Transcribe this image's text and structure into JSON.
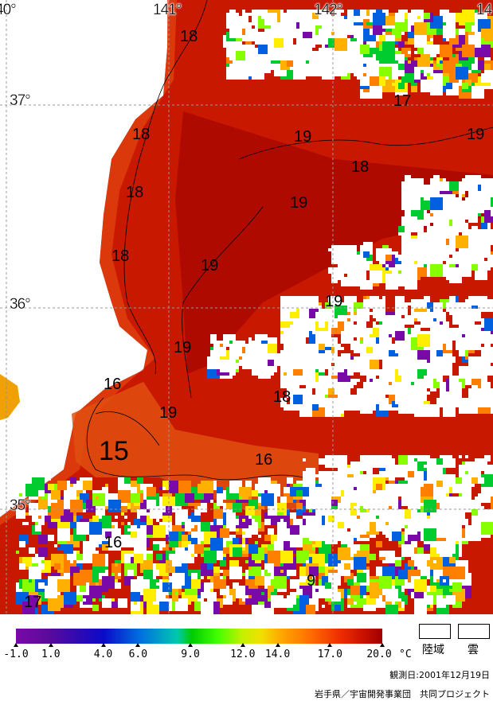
{
  "map": {
    "longitude_labels": [
      "40°",
      "141°",
      "142°",
      "14"
    ],
    "latitude_labels": [
      "37°",
      "36°",
      "35°"
    ],
    "contour_labels": [
      {
        "text": "18"
      },
      {
        "text": "17"
      },
      {
        "text": "19"
      },
      {
        "text": "19"
      },
      {
        "text": "18"
      },
      {
        "text": "18"
      },
      {
        "text": "18"
      },
      {
        "text": "19"
      },
      {
        "text": "18"
      },
      {
        "text": "19"
      },
      {
        "text": "19"
      },
      {
        "text": "19"
      },
      {
        "text": "16"
      },
      {
        "text": "18"
      },
      {
        "text": "19"
      },
      {
        "text": "15"
      },
      {
        "text": "16"
      },
      {
        "text": "16"
      },
      {
        "text": "9"
      },
      {
        "text": "17"
      }
    ],
    "colors": {
      "sea_warm": "#c41400",
      "sea_core": "#a80800",
      "coast": "#e03a10",
      "land": "#ffffff",
      "cloud": "#ffffff"
    }
  },
  "legend": {
    "ticks": [
      "-1.0",
      "1.0",
      "4.0",
      "6.0",
      "9.0",
      "12.0",
      "14.0",
      "17.0",
      "20.0"
    ],
    "unit": "°C",
    "tick_values": [
      -1,
      1,
      4,
      6,
      9,
      12,
      14,
      17,
      20
    ],
    "land_label": "陸域",
    "cloud_label": "雲"
  },
  "observation_date": "観測日:2001年12月19日",
  "credit": "岩手県／宇宙開発事業団　共同プロジェクト"
}
